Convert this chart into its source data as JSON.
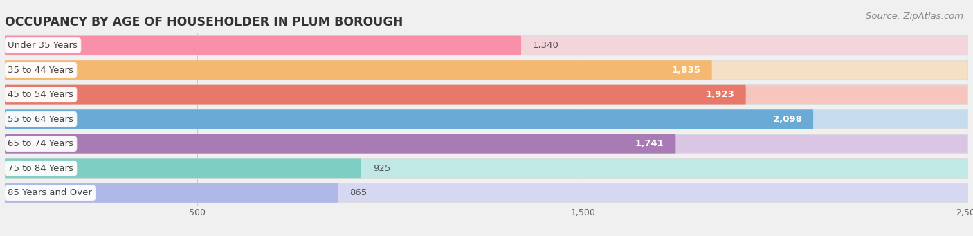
{
  "title": "OCCUPANCY BY AGE OF HOUSEHOLDER IN PLUM BOROUGH",
  "source": "Source: ZipAtlas.com",
  "categories": [
    "Under 35 Years",
    "35 to 44 Years",
    "45 to 54 Years",
    "55 to 64 Years",
    "65 to 74 Years",
    "75 to 84 Years",
    "85 Years and Over"
  ],
  "values": [
    1340,
    1835,
    1923,
    2098,
    1741,
    925,
    865
  ],
  "bar_colors": [
    "#F790A8",
    "#F5B870",
    "#E8796A",
    "#6AABD6",
    "#A87BB5",
    "#7ECEC4",
    "#B0B8E8"
  ],
  "bar_bg_colors": [
    "#F5D5DC",
    "#F5E0C5",
    "#F5C5BE",
    "#C5DCEF",
    "#DBC5E5",
    "#C0E8E5",
    "#D5D8F0"
  ],
  "xlim": [
    0,
    2500
  ],
  "xticks": [
    500,
    1500,
    2500
  ],
  "background_color": "#f0f0f0",
  "bar_bg_track": "#e8e8e8",
  "title_fontsize": 12.5,
  "source_fontsize": 9.5,
  "label_fontsize": 9.5,
  "value_fontsize": 9.5,
  "value_threshold": 1340
}
